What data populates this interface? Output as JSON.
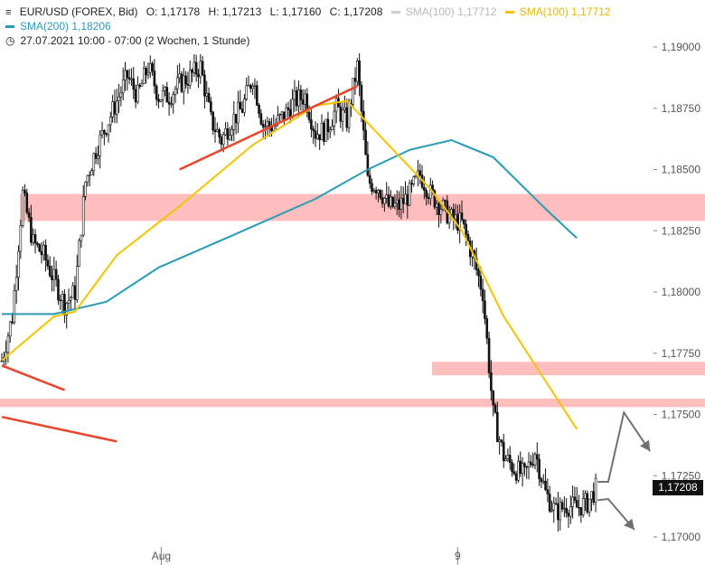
{
  "header": {
    "symbol": "EUR/USD (FOREX, Bid)",
    "open": "O: 1,17178",
    "high": "H: 1,17213",
    "low": "L: 1,17160",
    "close": "C: 1,17208",
    "sma100_grey": "SMA(100)  1,17712",
    "sma100_gold": "SMA(100)  1,17712",
    "sma200": "SMA(200)  1,18206",
    "period": "27.07.2021 10:00 - 07:00  (2 Wochen, 1 Stunde)"
  },
  "price_tag": "1,17208",
  "colors": {
    "sma100": "#f2c500",
    "sma200": "#2a9bb5",
    "trendline": "#e8452c",
    "zone": "#ffb7b7",
    "arrow": "#707070",
    "candle": "#111111"
  },
  "chart_data": {
    "type": "line",
    "title": "EUR/USD (FOREX, Bid)",
    "x_ticks": [
      "Aug",
      "9"
    ],
    "y_ticks": [
      "1,19000",
      "1,18750",
      "1,18500",
      "1,18250",
      "1,18000",
      "1,17750",
      "1,17500",
      "1,17250",
      "1,17000"
    ],
    "ylim": [
      1.1695,
      1.191
    ],
    "grid": false,
    "price_path": [
      {
        "t": 0,
        "y": 1.1772
      },
      {
        "t": 2,
        "y": 1.179
      },
      {
        "t": 4,
        "y": 1.184
      },
      {
        "t": 6,
        "y": 1.182
      },
      {
        "t": 8,
        "y": 1.1815
      },
      {
        "t": 10,
        "y": 1.1805
      },
      {
        "t": 12,
        "y": 1.1795
      },
      {
        "t": 14,
        "y": 1.18
      },
      {
        "t": 16,
        "y": 1.1845
      },
      {
        "t": 18,
        "y": 1.1858
      },
      {
        "t": 20,
        "y": 1.1868
      },
      {
        "t": 22,
        "y": 1.1878
      },
      {
        "t": 24,
        "y": 1.1888
      },
      {
        "t": 26,
        "y": 1.188
      },
      {
        "t": 28,
        "y": 1.1892
      },
      {
        "t": 30,
        "y": 1.188
      },
      {
        "t": 32,
        "y": 1.188
      },
      {
        "t": 34,
        "y": 1.1885
      },
      {
        "t": 36,
        "y": 1.1888
      },
      {
        "t": 38,
        "y": 1.1892
      },
      {
        "t": 40,
        "y": 1.187
      },
      {
        "t": 42,
        "y": 1.1862
      },
      {
        "t": 44,
        "y": 1.187
      },
      {
        "t": 46,
        "y": 1.1875
      },
      {
        "t": 48,
        "y": 1.1888
      },
      {
        "t": 50,
        "y": 1.1868
      },
      {
        "t": 52,
        "y": 1.1868
      },
      {
        "t": 54,
        "y": 1.1872
      },
      {
        "t": 56,
        "y": 1.1878
      },
      {
        "t": 58,
        "y": 1.188
      },
      {
        "t": 60,
        "y": 1.1865
      },
      {
        "t": 62,
        "y": 1.1866
      },
      {
        "t": 64,
        "y": 1.1875
      },
      {
        "t": 66,
        "y": 1.187
      },
      {
        "t": 68,
        "y": 1.1892
      },
      {
        "t": 70,
        "y": 1.1845
      },
      {
        "t": 72,
        "y": 1.1843
      },
      {
        "t": 74,
        "y": 1.1835
      },
      {
        "t": 76,
        "y": 1.1835
      },
      {
        "t": 78,
        "y": 1.184
      },
      {
        "t": 80,
        "y": 1.1848
      },
      {
        "t": 82,
        "y": 1.184
      },
      {
        "t": 84,
        "y": 1.1835
      },
      {
        "t": 86,
        "y": 1.183
      },
      {
        "t": 88,
        "y": 1.1828
      },
      {
        "t": 90,
        "y": 1.1815
      },
      {
        "t": 92,
        "y": 1.18
      },
      {
        "t": 94,
        "y": 1.175
      },
      {
        "t": 96,
        "y": 1.1733
      },
      {
        "t": 98,
        "y": 1.1728
      },
      {
        "t": 100,
        "y": 1.1725
      },
      {
        "t": 102,
        "y": 1.1735
      },
      {
        "t": 104,
        "y": 1.1718
      },
      {
        "t": 106,
        "y": 1.171
      },
      {
        "t": 108,
        "y": 1.1713
      },
      {
        "t": 110,
        "y": 1.1712
      },
      {
        "t": 112,
        "y": 1.1714
      },
      {
        "t": 114,
        "y": 1.1721
      }
    ],
    "sma100_path": [
      {
        "t": 0,
        "y": 1.1772
      },
      {
        "t": 10,
        "y": 1.179
      },
      {
        "t": 14,
        "y": 1.1792
      },
      {
        "t": 22,
        "y": 1.1815
      },
      {
        "t": 34,
        "y": 1.1835
      },
      {
        "t": 48,
        "y": 1.186
      },
      {
        "t": 60,
        "y": 1.1876
      },
      {
        "t": 66,
        "y": 1.1878
      },
      {
        "t": 74,
        "y": 1.186
      },
      {
        "t": 82,
        "y": 1.1842
      },
      {
        "t": 88,
        "y": 1.1825
      },
      {
        "t": 96,
        "y": 1.179
      },
      {
        "t": 110,
        "y": 1.1744
      }
    ],
    "sma200_path": [
      {
        "t": 0,
        "y": 1.1791
      },
      {
        "t": 10,
        "y": 1.1791
      },
      {
        "t": 20,
        "y": 1.1796
      },
      {
        "t": 30,
        "y": 1.181
      },
      {
        "t": 44,
        "y": 1.1823
      },
      {
        "t": 60,
        "y": 1.1838
      },
      {
        "t": 70,
        "y": 1.185
      },
      {
        "t": 78,
        "y": 1.1858
      },
      {
        "t": 86,
        "y": 1.1862
      },
      {
        "t": 94,
        "y": 1.1855
      },
      {
        "t": 104,
        "y": 1.1834
      },
      {
        "t": 110,
        "y": 1.1822
      }
    ],
    "zones": [
      {
        "from": 1.1829,
        "to": 1.184
      },
      {
        "from": 1.1766,
        "to": 1.17715
      },
      {
        "from": 1.1753,
        "to": 1.17565
      }
    ],
    "trendlines": [
      {
        "t1": 34,
        "y1": 1.185,
        "t2": 68,
        "y2": 1.1884
      },
      {
        "t1": 0,
        "y1": 1.177,
        "t2": 12,
        "y2": 1.176
      },
      {
        "t1": 0,
        "y1": 1.1749,
        "t2": 22,
        "y2": 1.1739
      }
    ],
    "scenario_arrows": [
      {
        "points": [
          {
            "t": 114,
            "y": 1.17225
          },
          {
            "t": 116,
            "y": 1.17225
          },
          {
            "t": 119,
            "y": 1.17508
          },
          {
            "t": 124,
            "y": 1.1735
          }
        ]
      },
      {
        "points": [
          {
            "t": 114,
            "y": 1.1715
          },
          {
            "t": 116,
            "y": 1.17155
          },
          {
            "t": 121,
            "y": 1.1703
          }
        ]
      }
    ]
  }
}
